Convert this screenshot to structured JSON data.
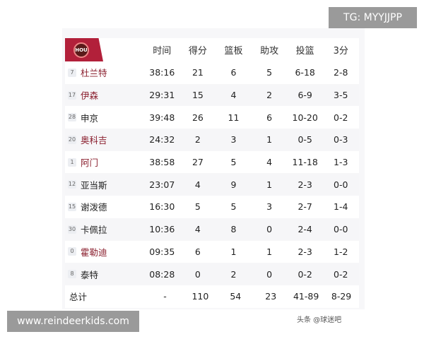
{
  "team_logo": "HOU",
  "headers": [
    "时间",
    "得分",
    "篮板",
    "助攻",
    "投篮",
    "3分"
  ],
  "players": [
    {
      "num": "7",
      "name": "杜兰特",
      "highlight": true,
      "stats": [
        "38:16",
        "21",
        "6",
        "5",
        "6-18",
        "2-8"
      ]
    },
    {
      "num": "17",
      "name": "伊森",
      "highlight": true,
      "stats": [
        "29:31",
        "15",
        "4",
        "2",
        "6-9",
        "3-5"
      ]
    },
    {
      "num": "28",
      "name": "申京",
      "highlight": false,
      "stats": [
        "39:48",
        "26",
        "11",
        "6",
        "10-20",
        "0-2"
      ]
    },
    {
      "num": "20",
      "name": "奥科吉",
      "highlight": true,
      "stats": [
        "24:32",
        "2",
        "3",
        "1",
        "0-5",
        "0-3"
      ]
    },
    {
      "num": "1",
      "name": "阿门",
      "highlight": true,
      "stats": [
        "38:58",
        "27",
        "5",
        "4",
        "11-18",
        "1-3"
      ]
    },
    {
      "num": "12",
      "name": "亚当斯",
      "highlight": false,
      "stats": [
        "23:07",
        "4",
        "9",
        "1",
        "2-3",
        "0-0"
      ]
    },
    {
      "num": "15",
      "name": "谢泼德",
      "highlight": false,
      "stats": [
        "16:30",
        "5",
        "5",
        "3",
        "2-7",
        "1-4"
      ]
    },
    {
      "num": "30",
      "name": "卡佩拉",
      "highlight": false,
      "stats": [
        "10:36",
        "4",
        "8",
        "0",
        "2-4",
        "0-0"
      ]
    },
    {
      "num": "0",
      "name": "霍勒迪",
      "highlight": true,
      "stats": [
        "09:35",
        "6",
        "1",
        "1",
        "2-3",
        "1-2"
      ]
    },
    {
      "num": "8",
      "name": "泰特",
      "highlight": false,
      "stats": [
        "08:28",
        "0",
        "2",
        "0",
        "0-2",
        "0-2"
      ]
    }
  ],
  "total": {
    "label": "总计",
    "stats": [
      "-",
      "110",
      "54",
      "23",
      "41-89",
      "8-29"
    ]
  },
  "watermark": "头条 @球迷吧",
  "overlay_tg": "TG: MYYJJPP",
  "overlay_site": "www.reindeerkids.com",
  "colors": {
    "team_red": "#b2203a",
    "name_highlight": "#8a1f2e"
  }
}
